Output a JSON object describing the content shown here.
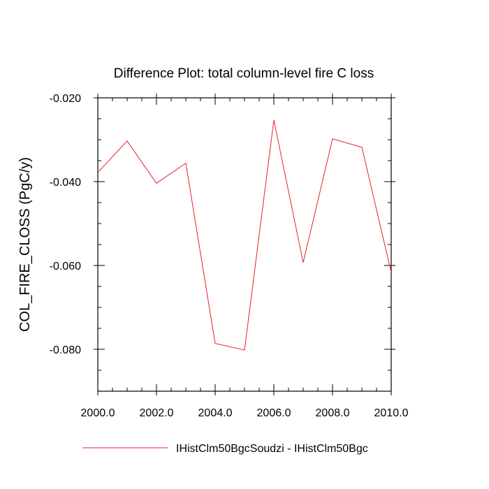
{
  "chart_data": {
    "type": "line",
    "title": "Difference Plot: total column-level fire C loss",
    "ylabel": "COL_FIRE_CLOSS  (PgC/y)",
    "xlabel": "",
    "xlim": [
      2000.0,
      2010.0
    ],
    "ylim": [
      -0.09,
      -0.02
    ],
    "x_ticks": [
      2000.0,
      2002.0,
      2004.0,
      2006.0,
      2008.0,
      2010.0
    ],
    "x_tick_labels": [
      "2000.0",
      "2002.0",
      "2004.0",
      "2006.0",
      "2008.0",
      "2010.0"
    ],
    "x_minor_step": 0.5,
    "y_ticks": [
      -0.02,
      -0.04,
      -0.06,
      -0.08
    ],
    "y_tick_labels": [
      "-0.020",
      "-0.040",
      "-0.060",
      "-0.080"
    ],
    "y_minor_step": 0.005,
    "grid": false,
    "legend_position": "bottom",
    "x": [
      2000,
      2001,
      2002,
      2003,
      2004,
      2005,
      2006,
      2007,
      2008,
      2009,
      2010
    ],
    "series": [
      {
        "name": "IHistClm50BgcSoudzi - IHistClm50Bgc",
        "color": "#e8202a",
        "values": [
          -0.0378,
          -0.0303,
          -0.0404,
          -0.0356,
          -0.0786,
          -0.0802,
          -0.0253,
          -0.0593,
          -0.0298,
          -0.0318,
          -0.0616
        ]
      }
    ]
  }
}
